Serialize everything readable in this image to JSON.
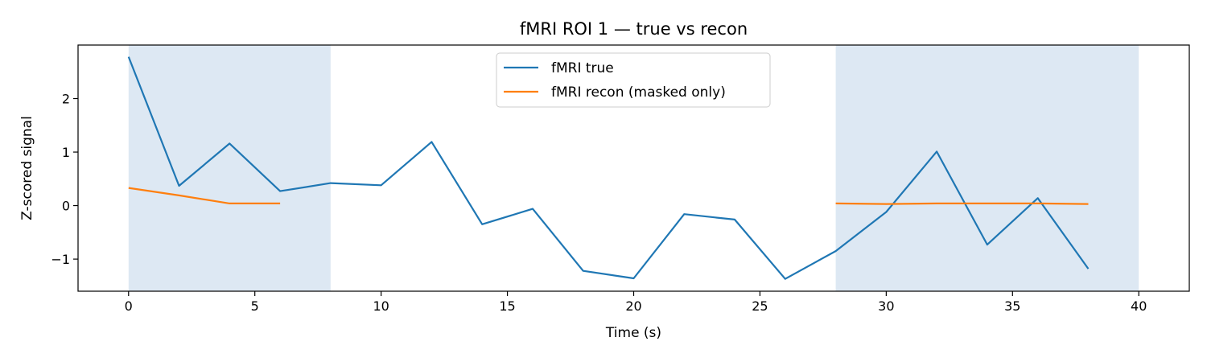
{
  "chart_data": {
    "type": "line",
    "title": "fMRI ROI 1 — true vs recon",
    "xlabel": "Time (s)",
    "ylabel": "Z-scored signal",
    "xlim": [
      -2,
      42
    ],
    "ylim": [
      -1.6,
      3.0
    ],
    "x_ticks": [
      0,
      5,
      10,
      15,
      20,
      25,
      30,
      35,
      40
    ],
    "x_tick_labels": [
      "0",
      "5",
      "10",
      "15",
      "20",
      "25",
      "30",
      "35",
      "40"
    ],
    "y_ticks": [
      -1,
      0,
      1,
      2
    ],
    "y_tick_labels": [
      "−1",
      "0",
      "1",
      "2"
    ],
    "grid": false,
    "legend_position": "top-center",
    "masked_spans": [
      [
        0,
        8
      ],
      [
        28,
        40
      ]
    ],
    "mask_color": "#dde8f3",
    "series": [
      {
        "name": "fMRI true",
        "color": "#1f77b4",
        "x": [
          0,
          2,
          4,
          6,
          8,
          10,
          12,
          14,
          16,
          18,
          20,
          22,
          24,
          26,
          28,
          30,
          32,
          34,
          36,
          38
        ],
        "y": [
          2.78,
          0.37,
          1.16,
          0.27,
          0.42,
          0.38,
          1.19,
          -0.35,
          -0.06,
          -1.22,
          -1.36,
          -0.16,
          -0.26,
          -1.37,
          -0.85,
          -0.12,
          1.01,
          -0.73,
          0.14,
          -1.18
        ]
      },
      {
        "name": "fMRI recon (masked only)",
        "color": "#ff7f0e",
        "segments": [
          {
            "x": [
              0,
              2,
              4,
              6
            ],
            "y": [
              0.33,
              0.19,
              0.04,
              0.04
            ]
          },
          {
            "x": [
              28,
              30,
              32,
              34,
              36,
              38
            ],
            "y": [
              0.04,
              0.03,
              0.04,
              0.04,
              0.04,
              0.03
            ]
          }
        ]
      }
    ]
  }
}
